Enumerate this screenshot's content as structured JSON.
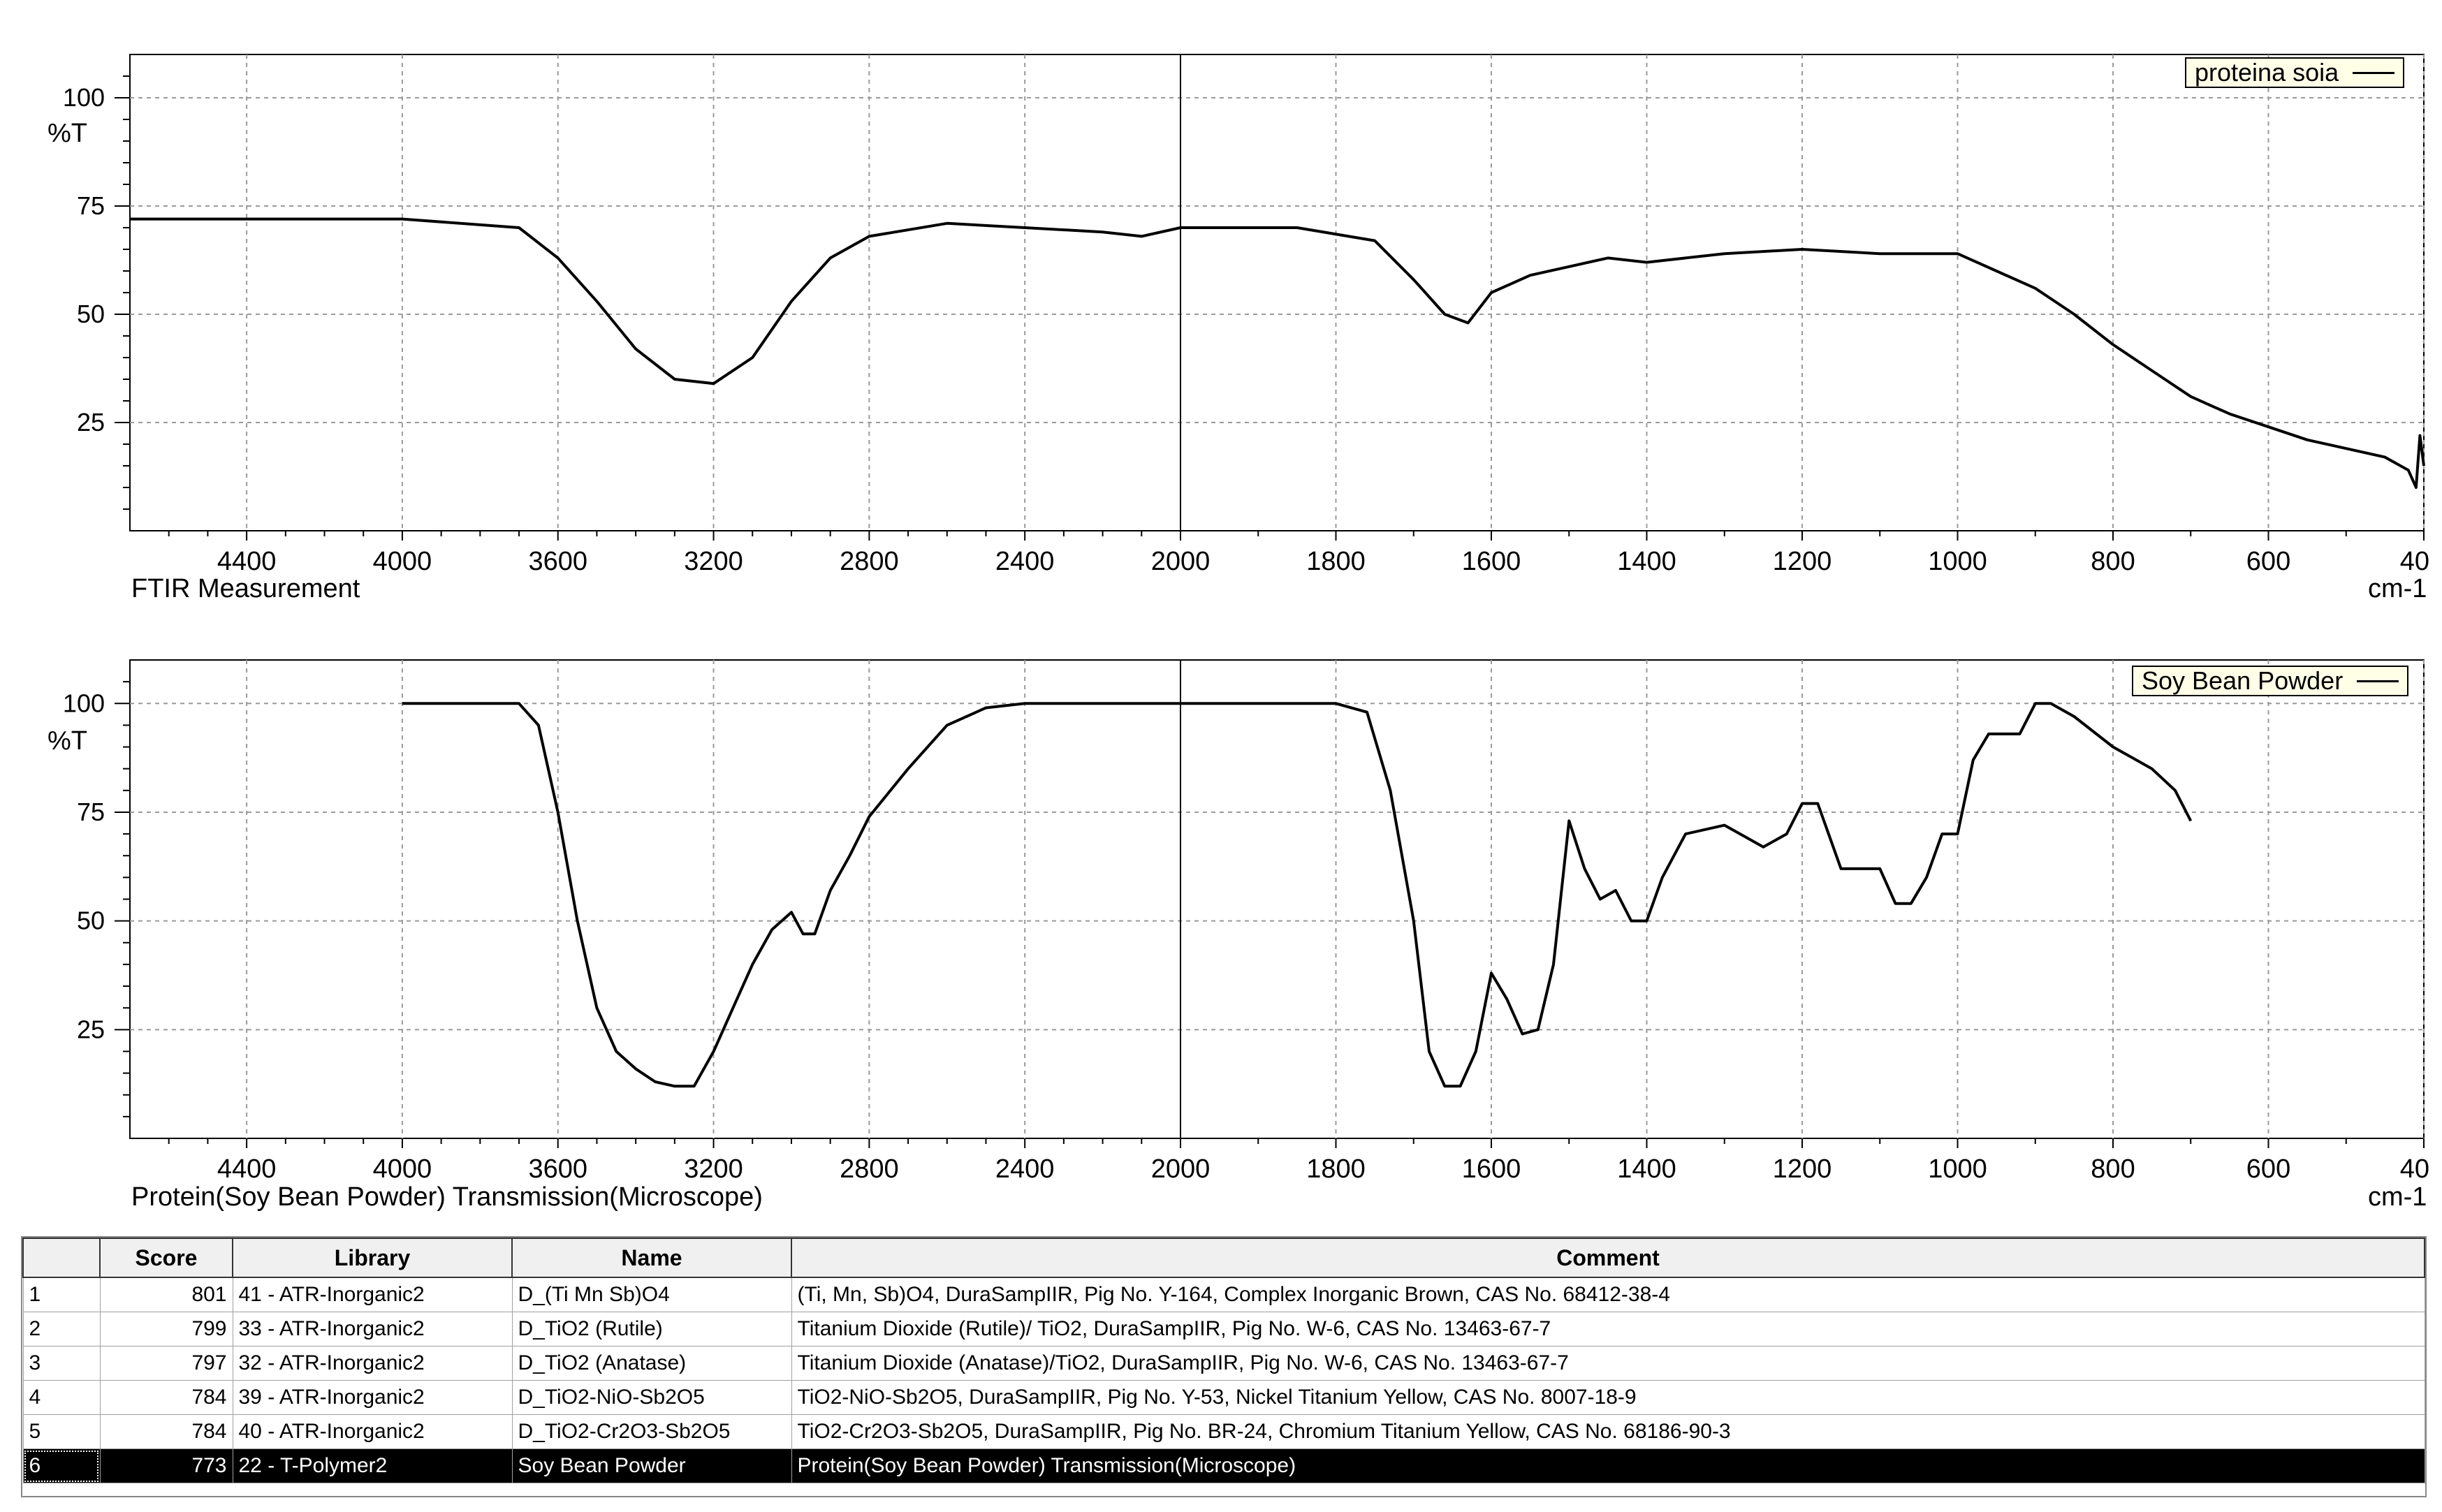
{
  "colors": {
    "curve": "#000000",
    "grid": "#9a9a9a",
    "legend_bg": "#ffffe8",
    "selected_row_bg": "#000000"
  },
  "top_panel": {
    "legend": "proteina soia",
    "caption": "FTIR Measurement",
    "unit": "cm-1",
    "y_unit": "%T",
    "y_ticks": [
      "100",
      "75",
      "50",
      "25"
    ],
    "x_ticks": [
      "4400",
      "4000",
      "3600",
      "3200",
      "2800",
      "2400",
      "2000",
      "1800",
      "1600",
      "1400",
      "1200",
      "1000",
      "800",
      "600",
      "40"
    ]
  },
  "bottom_panel": {
    "legend": "Soy Bean Powder",
    "caption": "Protein(Soy Bean Powder)  Transmission(Microscope)",
    "unit": "cm-1",
    "y_unit": "%T",
    "y_ticks": [
      "100",
      "75",
      "50",
      "25"
    ],
    "x_ticks": [
      "4400",
      "4000",
      "3600",
      "3200",
      "2800",
      "2400",
      "2000",
      "1800",
      "1600",
      "1400",
      "1200",
      "1000",
      "800",
      "600",
      "40"
    ]
  },
  "chart_data": [
    {
      "type": "line",
      "series": [
        {
          "name": "proteina soia",
          "x": [
            4700,
            4000,
            3700,
            3600,
            3500,
            3400,
            3300,
            3200,
            3100,
            3000,
            2900,
            2800,
            2600,
            2400,
            2200,
            2100,
            2000,
            1850,
            1750,
            1700,
            1660,
            1630,
            1600,
            1550,
            1500,
            1450,
            1400,
            1300,
            1200,
            1100,
            1000,
            950,
            900,
            850,
            800,
            750,
            700,
            650,
            600,
            550,
            500,
            450,
            420,
            410,
            405,
            400
          ],
          "y": [
            72,
            72,
            70,
            63,
            53,
            42,
            35,
            34,
            40,
            53,
            63,
            68,
            71,
            70,
            69,
            68,
            70,
            70,
            67,
            58,
            50,
            48,
            55,
            59,
            61,
            63,
            62,
            64,
            65,
            64,
            64,
            60,
            56,
            50,
            43,
            37,
            31,
            27,
            24,
            21,
            19,
            17,
            14,
            10,
            22,
            15
          ]
        }
      ]
    },
    {
      "type": "line",
      "series": [
        {
          "name": "Soy Bean Powder",
          "x": [
            4000,
            3800,
            3700,
            3650,
            3600,
            3550,
            3500,
            3450,
            3400,
            3350,
            3300,
            3250,
            3200,
            3150,
            3100,
            3050,
            3000,
            2970,
            2940,
            2900,
            2850,
            2800,
            2700,
            2600,
            2500,
            2400,
            2200,
            2000,
            1800,
            1760,
            1730,
            1700,
            1680,
            1660,
            1640,
            1620,
            1600,
            1580,
            1560,
            1540,
            1520,
            1500,
            1480,
            1460,
            1440,
            1420,
            1400,
            1380,
            1350,
            1300,
            1250,
            1220,
            1200,
            1180,
            1150,
            1100,
            1080,
            1060,
            1040,
            1020,
            1000,
            980,
            960,
            940,
            920,
            900,
            880,
            850,
            800,
            780,
            750,
            720,
            700
          ],
          "y": [
            100,
            100,
            100,
            95,
            75,
            50,
            30,
            20,
            16,
            13,
            12,
            12,
            20,
            30,
            40,
            48,
            52,
            47,
            47,
            57,
            65,
            74,
            85,
            95,
            99,
            100,
            100,
            100,
            100,
            98,
            80,
            50,
            20,
            12,
            12,
            20,
            38,
            32,
            24,
            25,
            40,
            73,
            62,
            55,
            57,
            50,
            50,
            60,
            70,
            72,
            67,
            70,
            77,
            77,
            62,
            62,
            54,
            54,
            60,
            70,
            70,
            87,
            93,
            93,
            93,
            100,
            100,
            97,
            90,
            88,
            85,
            80,
            73
          ]
        }
      ]
    }
  ],
  "results_table": {
    "columns": [
      "",
      "Score",
      "Library",
      "Name",
      "Comment"
    ],
    "rows": [
      [
        "1",
        "801",
        "41 - ATR-Inorganic2",
        "D_(Ti Mn Sb)O4",
        "(Ti, Mn, Sb)O4, DuraSampIIR, Pig No. Y-164, Complex Inorganic Brown, CAS No. 68412-38-4"
      ],
      [
        "2",
        "799",
        "33 - ATR-Inorganic2",
        "D_TiO2 (Rutile)",
        "Titanium Dioxide (Rutile)/ TiO2, DuraSampIIR, Pig No. W-6, CAS No. 13463-67-7"
      ],
      [
        "3",
        "797",
        "32 - ATR-Inorganic2",
        "D_TiO2 (Anatase)",
        "Titanium Dioxide (Anatase)/TiO2, DuraSampIIR, Pig No. W-6, CAS No. 13463-67-7"
      ],
      [
        "4",
        "784",
        "39 - ATR-Inorganic2",
        "D_TiO2-NiO-Sb2O5",
        "TiO2-NiO-Sb2O5, DuraSampIIR, Pig No. Y-53, Nickel Titanium Yellow, CAS No. 8007-18-9"
      ],
      [
        "5",
        "784",
        "40 - ATR-Inorganic2",
        "D_TiO2-Cr2O3-Sb2O5",
        "TiO2-Cr2O3-Sb2O5, DuraSampIIR, Pig No. BR-24, Chromium Titanium Yellow, CAS No. 68186-90-3"
      ],
      [
        "6",
        "773",
        "22 - T-Polymer2",
        "Soy Bean Powder",
        "Protein(Soy Bean Powder)  Transmission(Microscope)"
      ]
    ],
    "selected_row": 6
  }
}
